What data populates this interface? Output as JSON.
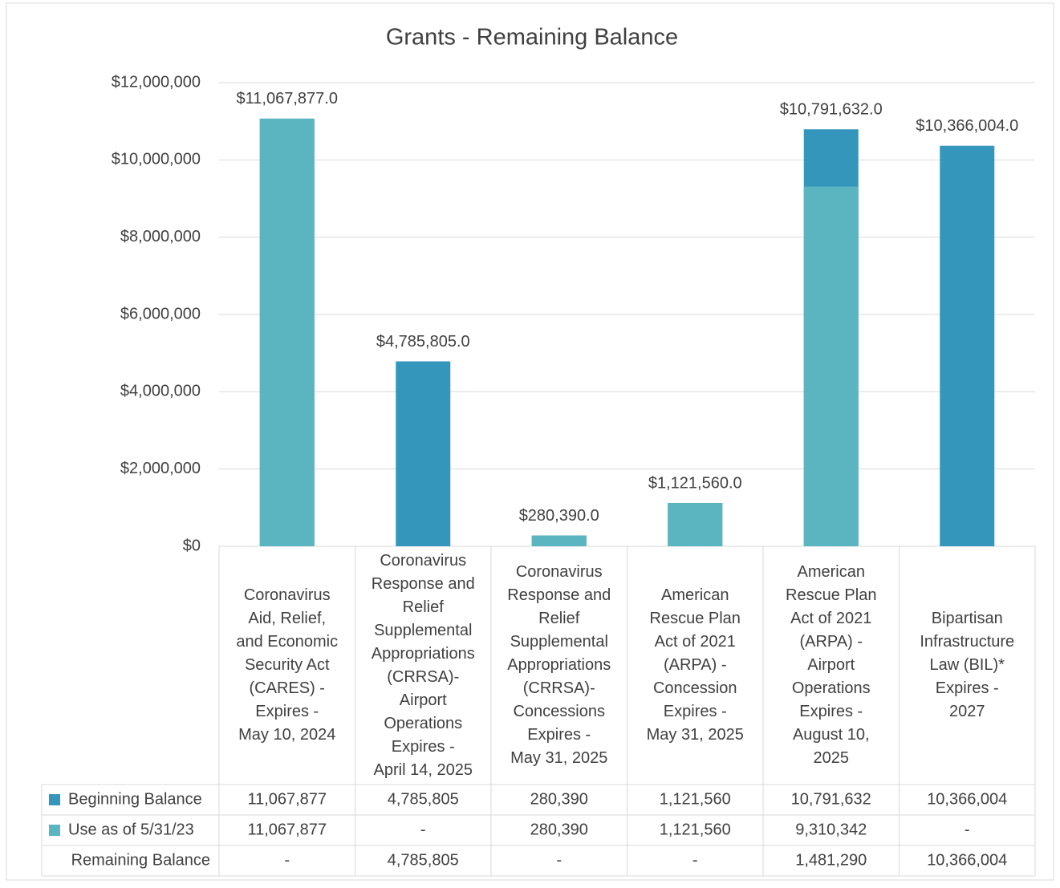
{
  "chart_data": {
    "type": "bar",
    "title": "Grants - Remaining Balance",
    "categories": [
      "Coronavirus\nAid, Relief,\nand Economic\nSecurity Act\n(CARES) -\n    Expires -\nMay 10, 2024",
      "Coronavirus\nResponse and\nRelief\nSupplemental\nAppropriations\n(CRRSA)-\nAirport\nOperations\n    Expires -\nApril 14, 2025",
      "Coronavirus\nResponse and\nRelief\nSupplemental\nAppropriations\n(CRRSA)-\nConcessions\n    Expires -\nMay 31, 2025",
      "American\nRescue Plan\nAct of 2021\n(ARPA) -\nConcession\n    Expires -\nMay 31, 2025",
      "American\nRescue Plan\nAct of 2021\n(ARPA) -\nAirport\nOperations\n    Expires -\nAugust 10,\n2025",
      "Bipartisan\nInfrastructure\nLaw (BIL)*\n    Expires -\n2027"
    ],
    "series": [
      {
        "name": "Beginning Balance",
        "color": "#3596bc",
        "values": [
          11067877,
          4785805,
          280390,
          1121560,
          10791632,
          10366004
        ],
        "value_labels": [
          "$11,067,877.0",
          "$4,785,805.0",
          "$280,390.0",
          "$1,121,560.0",
          "$10,791,632.0",
          "$10,366,004.0"
        ],
        "table_labels": [
          "11,067,877",
          "4,785,805",
          "280,390",
          "1,121,560",
          "10,791,632",
          "10,366,004"
        ]
      },
      {
        "name": "Use as of 5/31/23",
        "color": "#5bb5c0",
        "values": [
          11067877,
          0,
          280390,
          1121560,
          9310342,
          0
        ],
        "table_labels": [
          "11,067,877",
          "-",
          "280,390",
          "1,121,560",
          "9,310,342",
          "-"
        ]
      },
      {
        "name": "Remaining Balance",
        "values": [
          0,
          4785805,
          0,
          0,
          1481290,
          10366004
        ],
        "table_labels": [
          "-",
          "4,785,805",
          "-",
          "-",
          "1,481,290",
          "10,366,004"
        ]
      }
    ],
    "ylim": [
      0,
      12000000
    ],
    "yticks": [
      {
        "value": 0,
        "label": "$0"
      },
      {
        "value": 2000000,
        "label": "$2,000,000"
      },
      {
        "value": 4000000,
        "label": "$4,000,000"
      },
      {
        "value": 6000000,
        "label": "$6,000,000"
      },
      {
        "value": 8000000,
        "label": "$8,000,000"
      },
      {
        "value": 10000000,
        "label": "$10,000,000"
      },
      {
        "value": 12000000,
        "label": "$12,000,000"
      }
    ],
    "grid": true
  }
}
